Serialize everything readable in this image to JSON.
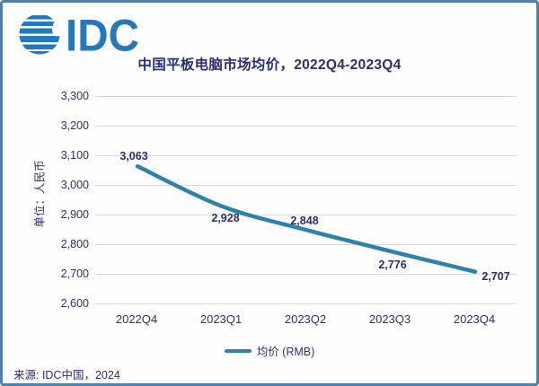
{
  "logo": {
    "name": "IDC",
    "color": "#2478bd"
  },
  "header": {
    "title": "中国平板电脑市场均价，2022Q4-2023Q4"
  },
  "source": {
    "text": "来源: IDC中国，2024"
  },
  "legend": {
    "label": "均价 (RMB)",
    "line_color": "#2e81a8"
  },
  "chart_data": {
    "type": "line",
    "title": "中国平板电脑市场均价，2022Q4-2023Q4",
    "xlabel": "",
    "ylabel": "单位：人民币",
    "categories": [
      "2022Q4",
      "2023Q1",
      "2023Q2",
      "2023Q3",
      "2023Q4"
    ],
    "series": [
      {
        "name": "均价 (RMB)",
        "values": [
          3063,
          2928,
          2848,
          2776,
          2707
        ]
      }
    ],
    "value_labels": [
      "3,063",
      "2,928",
      "2,848",
      "2,776",
      "2,707"
    ],
    "ytick_labels": [
      "3,300",
      "3,200",
      "3,100",
      "3,000",
      "2,900",
      "2,800",
      "2,700",
      "2,600"
    ],
    "ylim": [
      2600,
      3300
    ],
    "grid": true,
    "legend_position": "bottom",
    "line_color": "#2e81a8",
    "label_color": "#2b2f6e"
  }
}
